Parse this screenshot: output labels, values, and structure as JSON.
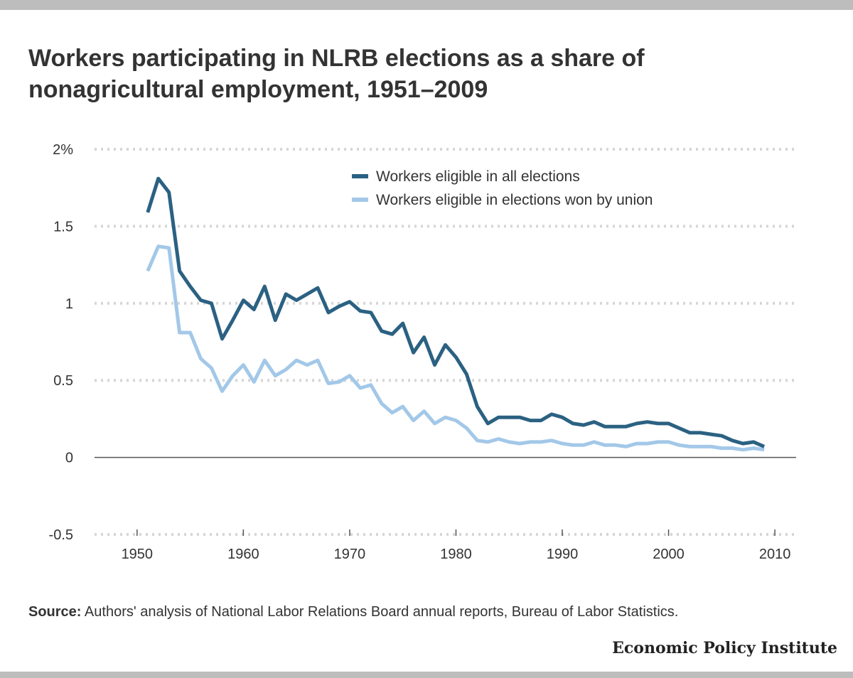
{
  "title": "Workers participating in NLRB elections as a share of nonagricultural employment, 1951–2009",
  "source_label": "Source:",
  "source_text": "Authors' analysis of National Labor Relations Board annual reports, Bureau of Labor Statistics.",
  "logo_text": "Economic Policy Institute",
  "chart_data": {
    "type": "line",
    "title": "Workers participating in NLRB elections as a share of nonagricultural employment, 1951–2009",
    "xlabel": "",
    "ylabel": "",
    "xlim": [
      1946,
      2012
    ],
    "ylim": [
      -0.5,
      2
    ],
    "x_ticks": [
      {
        "value": 1950,
        "label": "1950"
      },
      {
        "value": 1960,
        "label": "1960"
      },
      {
        "value": 1970,
        "label": "1970"
      },
      {
        "value": 1980,
        "label": "1980"
      },
      {
        "value": 1990,
        "label": "1990"
      },
      {
        "value": 2000,
        "label": "2000"
      },
      {
        "value": 2010,
        "label": "2010"
      }
    ],
    "y_ticks": [
      {
        "value": 2,
        "label": "2%"
      },
      {
        "value": 1.5,
        "label": "1.5"
      },
      {
        "value": 1,
        "label": "1"
      },
      {
        "value": 0.5,
        "label": "0.5"
      },
      {
        "value": 0,
        "label": "0"
      },
      {
        "value": -0.5,
        "label": "-0.5"
      }
    ],
    "grid": true,
    "legend_position": "top-right",
    "x": [
      1951,
      1952,
      1953,
      1954,
      1955,
      1956,
      1957,
      1958,
      1959,
      1960,
      1961,
      1962,
      1963,
      1964,
      1965,
      1966,
      1967,
      1968,
      1969,
      1970,
      1971,
      1972,
      1973,
      1974,
      1975,
      1976,
      1977,
      1978,
      1979,
      1980,
      1981,
      1982,
      1983,
      1984,
      1985,
      1986,
      1987,
      1988,
      1989,
      1990,
      1991,
      1992,
      1993,
      1994,
      1995,
      1996,
      1997,
      1998,
      1999,
      2000,
      2001,
      2002,
      2003,
      2004,
      2005,
      2006,
      2007,
      2008,
      2009
    ],
    "series": [
      {
        "name": "Workers eligible in all elections",
        "color": "#2b6182",
        "values": [
          1.59,
          1.81,
          1.72,
          1.21,
          1.11,
          1.02,
          1.0,
          0.77,
          0.89,
          1.02,
          0.96,
          1.11,
          0.89,
          1.06,
          1.02,
          1.06,
          1.1,
          0.94,
          0.98,
          1.01,
          0.95,
          0.94,
          0.82,
          0.8,
          0.87,
          0.68,
          0.78,
          0.6,
          0.73,
          0.65,
          0.54,
          0.33,
          0.22,
          0.26,
          0.26,
          0.26,
          0.24,
          0.24,
          0.28,
          0.26,
          0.22,
          0.21,
          0.23,
          0.2,
          0.2,
          0.2,
          0.22,
          0.23,
          0.22,
          0.22,
          0.19,
          0.16,
          0.16,
          0.15,
          0.14,
          0.11,
          0.09,
          0.1,
          0.07
        ]
      },
      {
        "name": "Workers eligible in elections won by union",
        "color": "#a3c8e8",
        "values": [
          1.21,
          1.37,
          1.36,
          0.81,
          0.81,
          0.64,
          0.58,
          0.43,
          0.53,
          0.6,
          0.49,
          0.63,
          0.53,
          0.57,
          0.63,
          0.6,
          0.63,
          0.48,
          0.49,
          0.53,
          0.45,
          0.47,
          0.35,
          0.29,
          0.33,
          0.24,
          0.3,
          0.22,
          0.26,
          0.24,
          0.19,
          0.11,
          0.1,
          0.12,
          0.1,
          0.09,
          0.1,
          0.1,
          0.11,
          0.09,
          0.08,
          0.08,
          0.1,
          0.08,
          0.08,
          0.07,
          0.09,
          0.09,
          0.1,
          0.1,
          0.08,
          0.07,
          0.07,
          0.07,
          0.06,
          0.06,
          0.05,
          0.06,
          0.05
        ]
      }
    ]
  }
}
